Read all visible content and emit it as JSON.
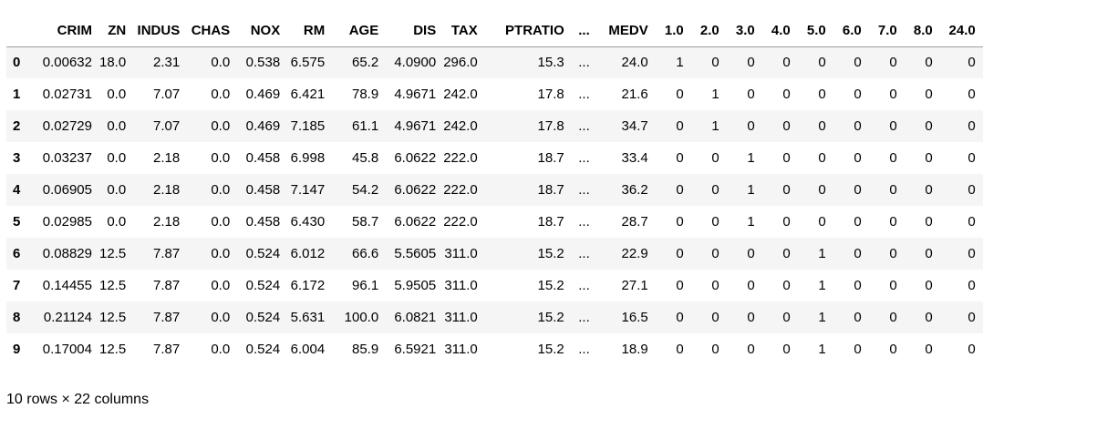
{
  "dataframe": {
    "columns": [
      "CRIM",
      "ZN",
      "INDUS",
      "CHAS",
      "NOX",
      "RM",
      "AGE",
      "DIS",
      "TAX",
      "PTRATIO",
      "...",
      "MEDV",
      "1.0",
      "2.0",
      "3.0",
      "4.0",
      "5.0",
      "6.0",
      "7.0",
      "8.0",
      "24.0"
    ],
    "rows": [
      {
        "index": "0",
        "cells": [
          "0.00632",
          "18.0",
          "2.31",
          "0.0",
          "0.538",
          "6.575",
          "65.2",
          "4.0900",
          "296.0",
          "15.3",
          "...",
          "24.0",
          "1",
          "0",
          "0",
          "0",
          "0",
          "0",
          "0",
          "0",
          "0"
        ]
      },
      {
        "index": "1",
        "cells": [
          "0.02731",
          "0.0",
          "7.07",
          "0.0",
          "0.469",
          "6.421",
          "78.9",
          "4.9671",
          "242.0",
          "17.8",
          "...",
          "21.6",
          "0",
          "1",
          "0",
          "0",
          "0",
          "0",
          "0",
          "0",
          "0"
        ]
      },
      {
        "index": "2",
        "cells": [
          "0.02729",
          "0.0",
          "7.07",
          "0.0",
          "0.469",
          "7.185",
          "61.1",
          "4.9671",
          "242.0",
          "17.8",
          "...",
          "34.7",
          "0",
          "1",
          "0",
          "0",
          "0",
          "0",
          "0",
          "0",
          "0"
        ]
      },
      {
        "index": "3",
        "cells": [
          "0.03237",
          "0.0",
          "2.18",
          "0.0",
          "0.458",
          "6.998",
          "45.8",
          "6.0622",
          "222.0",
          "18.7",
          "...",
          "33.4",
          "0",
          "0",
          "1",
          "0",
          "0",
          "0",
          "0",
          "0",
          "0"
        ]
      },
      {
        "index": "4",
        "cells": [
          "0.06905",
          "0.0",
          "2.18",
          "0.0",
          "0.458",
          "7.147",
          "54.2",
          "6.0622",
          "222.0",
          "18.7",
          "...",
          "36.2",
          "0",
          "0",
          "1",
          "0",
          "0",
          "0",
          "0",
          "0",
          "0"
        ]
      },
      {
        "index": "5",
        "cells": [
          "0.02985",
          "0.0",
          "2.18",
          "0.0",
          "0.458",
          "6.430",
          "58.7",
          "6.0622",
          "222.0",
          "18.7",
          "...",
          "28.7",
          "0",
          "0",
          "1",
          "0",
          "0",
          "0",
          "0",
          "0",
          "0"
        ]
      },
      {
        "index": "6",
        "cells": [
          "0.08829",
          "12.5",
          "7.87",
          "0.0",
          "0.524",
          "6.012",
          "66.6",
          "5.5605",
          "311.0",
          "15.2",
          "...",
          "22.9",
          "0",
          "0",
          "0",
          "0",
          "1",
          "0",
          "0",
          "0",
          "0"
        ]
      },
      {
        "index": "7",
        "cells": [
          "0.14455",
          "12.5",
          "7.87",
          "0.0",
          "0.524",
          "6.172",
          "96.1",
          "5.9505",
          "311.0",
          "15.2",
          "...",
          "27.1",
          "0",
          "0",
          "0",
          "0",
          "1",
          "0",
          "0",
          "0",
          "0"
        ]
      },
      {
        "index": "8",
        "cells": [
          "0.21124",
          "12.5",
          "7.87",
          "0.0",
          "0.524",
          "5.631",
          "100.0",
          "6.0821",
          "311.0",
          "15.2",
          "...",
          "16.5",
          "0",
          "0",
          "0",
          "0",
          "1",
          "0",
          "0",
          "0",
          "0"
        ]
      },
      {
        "index": "9",
        "cells": [
          "0.17004",
          "12.5",
          "7.87",
          "0.0",
          "0.524",
          "6.004",
          "85.9",
          "6.5921",
          "311.0",
          "15.2",
          "...",
          "18.9",
          "0",
          "0",
          "0",
          "0",
          "1",
          "0",
          "0",
          "0",
          "0"
        ]
      }
    ],
    "shape_text": "10 rows × 22 columns"
  },
  "colors": {
    "stripe": "#f5f5f5",
    "header_rule": "#9e9e9e"
  }
}
